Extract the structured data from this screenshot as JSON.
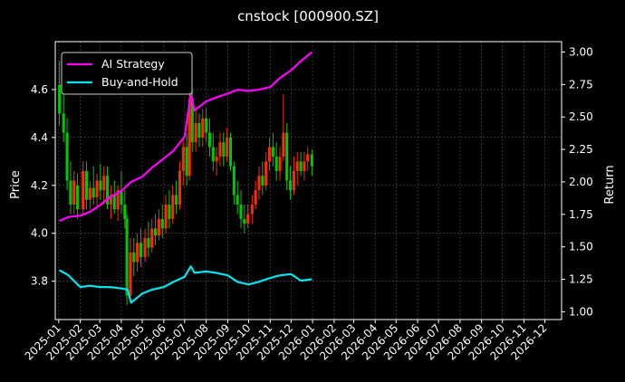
{
  "chart_data": {
    "type": "line",
    "title": "cnstock [000900.SZ]",
    "ylabel_left": "Price",
    "ylabel_right": "Return",
    "ylim_left": [
      3.64,
      4.8
    ],
    "ylim_right": [
      0.94,
      3.08
    ],
    "yticks_left": [
      "3.8",
      "4.0",
      "4.2",
      "4.4",
      "4.6"
    ],
    "yticks_right": [
      "1.00",
      "1.25",
      "1.50",
      "1.75",
      "2.00",
      "2.25",
      "2.50",
      "2.75",
      "3.00"
    ],
    "x_ticks": [
      "2025-01",
      "2025-02",
      "2025-03",
      "2025-04",
      "2025-05",
      "2025-06",
      "2025-07",
      "2025-08",
      "2025-09",
      "2025-10",
      "2025-11",
      "2025-12",
      "2026-01",
      "2026-02",
      "2026-03",
      "2026-04",
      "2026-05",
      "2026-06",
      "2026-07",
      "2026-08",
      "2026-09",
      "2026-10",
      "2026-11",
      "2026-12"
    ],
    "grid": true,
    "legend_position": "top-left",
    "colors": {
      "background": "#000000",
      "up_candle": "#ff2a00",
      "down_candle": "#00c800",
      "ai_strategy": "#ff00ff",
      "buy_and_hold": "#00e5ee",
      "grid": "#555555"
    },
    "series": [
      {
        "name": "AI Strategy",
        "axis": "right",
        "x": [
          "2025-01-02",
          "2025-01-15",
          "2025-02-01",
          "2025-02-15",
          "2025-03-01",
          "2025-03-15",
          "2025-04-01",
          "2025-04-15",
          "2025-05-01",
          "2025-05-15",
          "2025-06-01",
          "2025-06-15",
          "2025-07-01",
          "2025-07-10",
          "2025-07-15",
          "2025-08-01",
          "2025-08-15",
          "2025-09-01",
          "2025-09-15",
          "2025-10-01",
          "2025-10-15",
          "2025-11-01",
          "2025-11-15",
          "2025-12-01",
          "2025-12-15",
          "2025-12-31"
        ],
        "values": [
          1.7,
          1.73,
          1.74,
          1.77,
          1.82,
          1.88,
          1.93,
          2.0,
          2.04,
          2.11,
          2.18,
          2.24,
          2.35,
          2.68,
          2.55,
          2.62,
          2.65,
          2.68,
          2.71,
          2.7,
          2.71,
          2.73,
          2.8,
          2.86,
          2.93,
          3.0
        ]
      },
      {
        "name": "Buy-and-Hold",
        "axis": "right",
        "x": [
          "2025-01-02",
          "2025-01-15",
          "2025-02-01",
          "2025-02-15",
          "2025-03-01",
          "2025-03-15",
          "2025-04-01",
          "2025-04-10",
          "2025-04-15",
          "2025-05-01",
          "2025-05-15",
          "2025-06-01",
          "2025-06-15",
          "2025-07-01",
          "2025-07-10",
          "2025-07-15",
          "2025-08-01",
          "2025-08-15",
          "2025-09-01",
          "2025-09-15",
          "2025-10-01",
          "2025-10-15",
          "2025-11-01",
          "2025-11-15",
          "2025-12-01",
          "2025-12-15",
          "2025-12-31"
        ],
        "values": [
          1.32,
          1.28,
          1.19,
          1.2,
          1.19,
          1.19,
          1.18,
          1.17,
          1.07,
          1.14,
          1.17,
          1.19,
          1.23,
          1.27,
          1.35,
          1.3,
          1.31,
          1.3,
          1.28,
          1.23,
          1.21,
          1.23,
          1.26,
          1.28,
          1.29,
          1.24,
          1.25
        ]
      }
    ],
    "candles": [
      {
        "x": "2025-01-02",
        "open": 4.62,
        "high": 4.72,
        "low": 4.45,
        "close": 4.5
      },
      {
        "x": "2025-01-08",
        "open": 4.5,
        "high": 4.62,
        "low": 4.38,
        "close": 4.42
      },
      {
        "x": "2025-01-13",
        "open": 4.42,
        "high": 4.48,
        "low": 4.18,
        "close": 4.22
      },
      {
        "x": "2025-01-18",
        "open": 4.22,
        "high": 4.3,
        "low": 4.08,
        "close": 4.12
      },
      {
        "x": "2025-01-23",
        "open": 4.12,
        "high": 4.26,
        "low": 4.08,
        "close": 4.22
      },
      {
        "x": "2025-01-28",
        "open": 4.2,
        "high": 4.25,
        "low": 4.06,
        "close": 4.1
      },
      {
        "x": "2025-02-05",
        "open": 4.1,
        "high": 4.3,
        "low": 4.08,
        "close": 4.26
      },
      {
        "x": "2025-02-10",
        "open": 4.26,
        "high": 4.3,
        "low": 4.1,
        "close": 4.14
      },
      {
        "x": "2025-02-15",
        "open": 4.14,
        "high": 4.22,
        "low": 4.1,
        "close": 4.19
      },
      {
        "x": "2025-02-20",
        "open": 4.19,
        "high": 4.28,
        "low": 4.12,
        "close": 4.15
      },
      {
        "x": "2025-02-25",
        "open": 4.15,
        "high": 4.25,
        "low": 4.1,
        "close": 4.22
      },
      {
        "x": "2025-03-02",
        "open": 4.22,
        "high": 4.29,
        "low": 4.14,
        "close": 4.18
      },
      {
        "x": "2025-03-07",
        "open": 4.18,
        "high": 4.28,
        "low": 4.12,
        "close": 4.24
      },
      {
        "x": "2025-03-12",
        "open": 4.24,
        "high": 4.28,
        "low": 4.1,
        "close": 4.12
      },
      {
        "x": "2025-03-17",
        "open": 4.12,
        "high": 4.2,
        "low": 4.06,
        "close": 4.16
      },
      {
        "x": "2025-03-22",
        "open": 4.16,
        "high": 4.22,
        "low": 4.08,
        "close": 4.1
      },
      {
        "x": "2025-03-27",
        "open": 4.1,
        "high": 4.2,
        "low": 4.05,
        "close": 4.18
      },
      {
        "x": "2025-04-01",
        "open": 4.18,
        "high": 4.26,
        "low": 4.08,
        "close": 4.12
      },
      {
        "x": "2025-04-06",
        "open": 4.12,
        "high": 4.18,
        "low": 4.02,
        "close": 4.06
      },
      {
        "x": "2025-04-09",
        "open": 4.06,
        "high": 4.08,
        "low": 3.7,
        "close": 3.74
      },
      {
        "x": "2025-04-14",
        "open": 3.74,
        "high": 3.98,
        "low": 3.72,
        "close": 3.92
      },
      {
        "x": "2025-04-19",
        "open": 3.92,
        "high": 3.98,
        "low": 3.82,
        "close": 3.88
      },
      {
        "x": "2025-04-24",
        "open": 3.88,
        "high": 4.0,
        "low": 3.84,
        "close": 3.96
      },
      {
        "x": "2025-04-29",
        "open": 3.96,
        "high": 4.02,
        "low": 3.86,
        "close": 3.9
      },
      {
        "x": "2025-05-05",
        "open": 3.9,
        "high": 4.02,
        "low": 3.88,
        "close": 3.98
      },
      {
        "x": "2025-05-10",
        "open": 3.98,
        "high": 4.05,
        "low": 3.9,
        "close": 3.94
      },
      {
        "x": "2025-05-15",
        "open": 3.94,
        "high": 4.06,
        "low": 3.92,
        "close": 4.02
      },
      {
        "x": "2025-05-20",
        "open": 4.02,
        "high": 4.08,
        "low": 3.95,
        "close": 3.99
      },
      {
        "x": "2025-05-25",
        "open": 3.99,
        "high": 4.1,
        "low": 3.97,
        "close": 4.06
      },
      {
        "x": "2025-05-30",
        "open": 4.06,
        "high": 4.12,
        "low": 3.98,
        "close": 4.02
      },
      {
        "x": "2025-06-04",
        "open": 4.02,
        "high": 4.16,
        "low": 4.0,
        "close": 4.12
      },
      {
        "x": "2025-06-09",
        "open": 4.12,
        "high": 4.18,
        "low": 4.02,
        "close": 4.06
      },
      {
        "x": "2025-06-14",
        "open": 4.06,
        "high": 4.2,
        "low": 4.04,
        "close": 4.16
      },
      {
        "x": "2025-06-19",
        "open": 4.16,
        "high": 4.22,
        "low": 4.08,
        "close": 4.12
      },
      {
        "x": "2025-06-24",
        "open": 4.12,
        "high": 4.3,
        "low": 4.1,
        "close": 4.26
      },
      {
        "x": "2025-06-29",
        "open": 4.26,
        "high": 4.4,
        "low": 4.2,
        "close": 4.36
      },
      {
        "x": "2025-07-04",
        "open": 4.36,
        "high": 4.42,
        "low": 4.2,
        "close": 4.24
      },
      {
        "x": "2025-07-08",
        "open": 4.24,
        "high": 4.62,
        "low": 4.22,
        "close": 4.56
      },
      {
        "x": "2025-07-12",
        "open": 4.56,
        "high": 4.6,
        "low": 4.34,
        "close": 4.38
      },
      {
        "x": "2025-07-17",
        "open": 4.38,
        "high": 4.52,
        "low": 4.34,
        "close": 4.46
      },
      {
        "x": "2025-07-22",
        "open": 4.46,
        "high": 4.5,
        "low": 4.36,
        "close": 4.4
      },
      {
        "x": "2025-07-27",
        "open": 4.4,
        "high": 4.52,
        "low": 4.36,
        "close": 4.48
      },
      {
        "x": "2025-08-01",
        "open": 4.48,
        "high": 4.52,
        "low": 4.38,
        "close": 4.42
      },
      {
        "x": "2025-08-06",
        "open": 4.42,
        "high": 4.48,
        "low": 4.32,
        "close": 4.36
      },
      {
        "x": "2025-08-11",
        "open": 4.36,
        "high": 4.42,
        "low": 4.26,
        "close": 4.3
      },
      {
        "x": "2025-08-16",
        "open": 4.3,
        "high": 4.36,
        "low": 4.24,
        "close": 4.32
      },
      {
        "x": "2025-08-21",
        "open": 4.32,
        "high": 4.42,
        "low": 4.28,
        "close": 4.38
      },
      {
        "x": "2025-08-26",
        "open": 4.38,
        "high": 4.42,
        "low": 4.28,
        "close": 4.32
      },
      {
        "x": "2025-08-31",
        "open": 4.32,
        "high": 4.44,
        "low": 4.3,
        "close": 4.4
      },
      {
        "x": "2025-09-05",
        "open": 4.4,
        "high": 4.42,
        "low": 4.26,
        "close": 4.28
      },
      {
        "x": "2025-09-10",
        "open": 4.28,
        "high": 4.3,
        "low": 4.12,
        "close": 4.16
      },
      {
        "x": "2025-09-15",
        "open": 4.16,
        "high": 4.22,
        "low": 4.08,
        "close": 4.12
      },
      {
        "x": "2025-09-20",
        "open": 4.12,
        "high": 4.18,
        "low": 4.02,
        "close": 4.06
      },
      {
        "x": "2025-09-25",
        "open": 4.06,
        "high": 4.12,
        "low": 4.0,
        "close": 4.04
      },
      {
        "x": "2025-09-30",
        "open": 4.04,
        "high": 4.12,
        "low": 4.02,
        "close": 4.08
      },
      {
        "x": "2025-10-06",
        "open": 4.08,
        "high": 4.16,
        "low": 4.04,
        "close": 4.12
      },
      {
        "x": "2025-10-11",
        "open": 4.12,
        "high": 4.22,
        "low": 4.1,
        "close": 4.18
      },
      {
        "x": "2025-10-16",
        "open": 4.18,
        "high": 4.28,
        "low": 4.14,
        "close": 4.24
      },
      {
        "x": "2025-10-21",
        "open": 4.24,
        "high": 4.3,
        "low": 4.16,
        "close": 4.2
      },
      {
        "x": "2025-10-26",
        "open": 4.2,
        "high": 4.34,
        "low": 4.18,
        "close": 4.3
      },
      {
        "x": "2025-10-31",
        "open": 4.3,
        "high": 4.4,
        "low": 4.26,
        "close": 4.36
      },
      {
        "x": "2025-11-05",
        "open": 4.36,
        "high": 4.42,
        "low": 4.28,
        "close": 4.32
      },
      {
        "x": "2025-11-10",
        "open": 4.32,
        "high": 4.38,
        "low": 4.22,
        "close": 4.26
      },
      {
        "x": "2025-11-15",
        "open": 4.26,
        "high": 4.36,
        "low": 4.22,
        "close": 4.32
      },
      {
        "x": "2025-11-20",
        "open": 4.32,
        "high": 4.58,
        "low": 4.3,
        "close": 4.42
      },
      {
        "x": "2025-11-25",
        "open": 4.42,
        "high": 4.46,
        "low": 4.18,
        "close": 4.22
      },
      {
        "x": "2025-11-30",
        "open": 4.22,
        "high": 4.28,
        "low": 4.14,
        "close": 4.18
      },
      {
        "x": "2025-12-05",
        "open": 4.18,
        "high": 4.32,
        "low": 4.16,
        "close": 4.26
      },
      {
        "x": "2025-12-10",
        "open": 4.26,
        "high": 4.34,
        "low": 4.2,
        "close": 4.3
      },
      {
        "x": "2025-12-15",
        "open": 4.3,
        "high": 4.34,
        "low": 4.24,
        "close": 4.26
      },
      {
        "x": "2025-12-20",
        "open": 4.26,
        "high": 4.34,
        "low": 4.22,
        "close": 4.3
      },
      {
        "x": "2025-12-25",
        "open": 4.3,
        "high": 4.36,
        "low": 4.26,
        "close": 4.33
      },
      {
        "x": "2025-12-31",
        "open": 4.33,
        "high": 4.35,
        "low": 4.24,
        "close": 4.28
      }
    ]
  }
}
